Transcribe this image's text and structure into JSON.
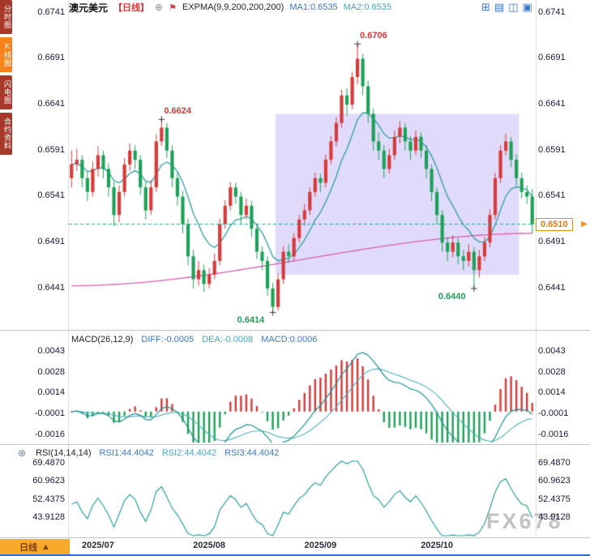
{
  "sidebar": {
    "tabs": [
      {
        "id": "timeshare",
        "label": "分时图",
        "active": false
      },
      {
        "id": "kline",
        "label": "K线图",
        "active": true
      },
      {
        "id": "lightning",
        "label": "闪电图",
        "active": false
      },
      {
        "id": "contract-info",
        "label": "合约资料",
        "active": false
      }
    ]
  },
  "header": {
    "symbol": "澳元美元",
    "period": "【日线】",
    "indicator": "EXPMA(9,9,200,200,200)",
    "ma1": "MA1:0.6535",
    "ma2": "MA2:0.6535",
    "icons": {
      "plus_circle": "⊕",
      "flag": "⚑",
      "price_arrow": "▶",
      "rsi_star": "⊛"
    },
    "toolbar_icons": [
      "⊞",
      "▤",
      "◫",
      "▣"
    ]
  },
  "bottom_tab": {
    "label": "日线",
    "arrow": "▲"
  },
  "watermark": "FX678",
  "colors": {
    "up": "#d63a3a",
    "down": "#1da158",
    "ema": "#2f9d9e",
    "ma200": "#d75fae",
    "region": "rgba(143,125,236,0.28)",
    "dashed_line": "#2f9d9e",
    "marker": "#3a3a3a",
    "macd_diff": "#1f8f90",
    "macd_dea": "#49b0b8",
    "rsi_line": "#2f9d9e"
  },
  "chart_data": [
    {
      "type": "candlestick",
      "title": "澳元美元 日线 (AUD/USD daily)",
      "ylim": [
        0.6395,
        0.6745
      ],
      "yticks": [
        "0.6741",
        "0.6691",
        "0.6641",
        "0.6591",
        "0.6541",
        "0.6491",
        "0.6441"
      ],
      "current_price": 0.651,
      "current_price_label": "0.6510",
      "ema_period": 9,
      "ma200": {
        "start": 0.6443,
        "end": 0.65
      },
      "highlight_region": {
        "from_index": 39,
        "to_index": 84,
        "top_price": 0.663,
        "bottom_price": 0.6455
      },
      "annotations": [
        {
          "index": 17,
          "price": 0.6624,
          "text": "0.6624",
          "type": "high"
        },
        {
          "index": 54,
          "price": 0.6706,
          "text": "0.6706",
          "type": "high"
        },
        {
          "index": 38,
          "price": 0.6414,
          "text": "0.6414",
          "type": "low"
        },
        {
          "index": 76,
          "price": 0.644,
          "text": "0.6440",
          "type": "low"
        }
      ],
      "x_labels": [
        {
          "text": "2025/07",
          "index": 5
        },
        {
          "text": "2025/08",
          "index": 26
        },
        {
          "text": "2025/09",
          "index": 47
        },
        {
          "text": "2025/10",
          "index": 69
        }
      ],
      "candles": [
        [
          0.656,
          0.659,
          0.655,
          0.6575
        ],
        [
          0.6575,
          0.6592,
          0.6568,
          0.658
        ],
        [
          0.658,
          0.6585,
          0.655,
          0.656
        ],
        [
          0.656,
          0.6568,
          0.6535,
          0.6545
        ],
        [
          0.6545,
          0.6578,
          0.654,
          0.657
        ],
        [
          0.657,
          0.6595,
          0.6562,
          0.6585
        ],
        [
          0.6585,
          0.659,
          0.656,
          0.657
        ],
        [
          0.657,
          0.6576,
          0.654,
          0.655
        ],
        [
          0.655,
          0.6556,
          0.6508,
          0.652
        ],
        [
          0.652,
          0.6552,
          0.6512,
          0.6545
        ],
        [
          0.6545,
          0.6582,
          0.654,
          0.6575
        ],
        [
          0.6575,
          0.6598,
          0.6568,
          0.659
        ],
        [
          0.659,
          0.6596,
          0.657,
          0.658
        ],
        [
          0.658,
          0.6585,
          0.6542,
          0.655
        ],
        [
          0.655,
          0.6556,
          0.6515,
          0.6525
        ],
        [
          0.6525,
          0.6558,
          0.652,
          0.655
        ],
        [
          0.655,
          0.6608,
          0.6545,
          0.66
        ],
        [
          0.66,
          0.6624,
          0.6595,
          0.6615
        ],
        [
          0.6615,
          0.662,
          0.6582,
          0.659
        ],
        [
          0.659,
          0.6596,
          0.655,
          0.656
        ],
        [
          0.656,
          0.6566,
          0.653,
          0.654
        ],
        [
          0.654,
          0.6546,
          0.65,
          0.651
        ],
        [
          0.651,
          0.6516,
          0.6465,
          0.6475
        ],
        [
          0.6475,
          0.6482,
          0.644,
          0.645
        ],
        [
          0.645,
          0.647,
          0.6443,
          0.646
        ],
        [
          0.646,
          0.6466,
          0.6436,
          0.6445
        ],
        [
          0.6445,
          0.6462,
          0.644,
          0.6455
        ],
        [
          0.6455,
          0.6478,
          0.645,
          0.647
        ],
        [
          0.647,
          0.6516,
          0.6465,
          0.651
        ],
        [
          0.651,
          0.6536,
          0.6505,
          0.653
        ],
        [
          0.653,
          0.6556,
          0.6525,
          0.655
        ],
        [
          0.655,
          0.6555,
          0.6532,
          0.654
        ],
        [
          0.654,
          0.6545,
          0.651,
          0.652
        ],
        [
          0.652,
          0.6538,
          0.6515,
          0.653
        ],
        [
          0.653,
          0.6535,
          0.6496,
          0.6505
        ],
        [
          0.6505,
          0.651,
          0.6472,
          0.648
        ],
        [
          0.648,
          0.6486,
          0.646,
          0.647
        ],
        [
          0.647,
          0.6475,
          0.6432,
          0.644
        ],
        [
          0.644,
          0.6446,
          0.6414,
          0.642
        ],
        [
          0.642,
          0.6456,
          0.6416,
          0.645
        ],
        [
          0.645,
          0.6486,
          0.6445,
          0.648
        ],
        [
          0.648,
          0.6488,
          0.6468,
          0.6475
        ],
        [
          0.6475,
          0.65,
          0.647,
          0.6495
        ],
        [
          0.6495,
          0.652,
          0.649,
          0.6515
        ],
        [
          0.6515,
          0.6532,
          0.6508,
          0.6525
        ],
        [
          0.6525,
          0.655,
          0.652,
          0.6545
        ],
        [
          0.6545,
          0.6566,
          0.654,
          0.656
        ],
        [
          0.656,
          0.6565,
          0.6545,
          0.6555
        ],
        [
          0.6555,
          0.6586,
          0.655,
          0.658
        ],
        [
          0.658,
          0.6606,
          0.6575,
          0.66
        ],
        [
          0.66,
          0.6626,
          0.6595,
          0.662
        ],
        [
          0.662,
          0.6656,
          0.6615,
          0.665
        ],
        [
          0.665,
          0.6658,
          0.6628,
          0.664
        ],
        [
          0.664,
          0.6676,
          0.6635,
          0.667
        ],
        [
          0.667,
          0.6706,
          0.6662,
          0.669
        ],
        [
          0.669,
          0.6695,
          0.665,
          0.666
        ],
        [
          0.666,
          0.6666,
          0.662,
          0.663
        ],
        [
          0.663,
          0.6636,
          0.659,
          0.66
        ],
        [
          0.66,
          0.661,
          0.658,
          0.659
        ],
        [
          0.659,
          0.6596,
          0.656,
          0.657
        ],
        [
          0.657,
          0.6592,
          0.6565,
          0.6585
        ],
        [
          0.6585,
          0.6612,
          0.658,
          0.6605
        ],
        [
          0.6605,
          0.6622,
          0.6598,
          0.6615
        ],
        [
          0.6615,
          0.662,
          0.659,
          0.66
        ],
        [
          0.66,
          0.6606,
          0.658,
          0.659
        ],
        [
          0.659,
          0.6612,
          0.6585,
          0.6605
        ],
        [
          0.6605,
          0.661,
          0.6582,
          0.659
        ],
        [
          0.659,
          0.6596,
          0.656,
          0.657
        ],
        [
          0.657,
          0.6575,
          0.6535,
          0.6545
        ],
        [
          0.6545,
          0.655,
          0.651,
          0.652
        ],
        [
          0.652,
          0.6525,
          0.648,
          0.649
        ],
        [
          0.649,
          0.6496,
          0.647,
          0.648
        ],
        [
          0.648,
          0.6498,
          0.6474,
          0.649
        ],
        [
          0.649,
          0.6495,
          0.6466,
          0.6475
        ],
        [
          0.6475,
          0.6482,
          0.646,
          0.647
        ],
        [
          0.647,
          0.6488,
          0.6464,
          0.648
        ],
        [
          0.648,
          0.6485,
          0.644,
          0.646
        ],
        [
          0.646,
          0.6482,
          0.6452,
          0.6475
        ],
        [
          0.6475,
          0.6496,
          0.647,
          0.649
        ],
        [
          0.649,
          0.6526,
          0.6485,
          0.652
        ],
        [
          0.652,
          0.6566,
          0.6515,
          0.656
        ],
        [
          0.656,
          0.6596,
          0.6555,
          0.659
        ],
        [
          0.659,
          0.6608,
          0.6585,
          0.66
        ],
        [
          0.66,
          0.6605,
          0.6572,
          0.658
        ],
        [
          0.658,
          0.6586,
          0.6552,
          0.656
        ],
        [
          0.656,
          0.6566,
          0.6538,
          0.6545
        ],
        [
          0.6545,
          0.6552,
          0.6532,
          0.654
        ],
        [
          0.654,
          0.6548,
          0.65,
          0.651
        ]
      ]
    },
    {
      "type": "macd",
      "title": "MACD(26,12,9)",
      "diff_label": "DIFF:-0.0005",
      "dea_label": "DEA:-0.0008",
      "macd_label": "MACD:0.0006",
      "params": [
        26,
        12,
        9
      ],
      "ylim": [
        -0.0022,
        0.0046
      ],
      "yticks": [
        "0.0043",
        "0.0028",
        "0.0014",
        "-0.0001",
        "-0.0016"
      ]
    },
    {
      "type": "rsi",
      "title": "RSI(14,14,14)",
      "rsi1_label": "RSI1:44.4042",
      "rsi2_label": "RSI2:44.4042",
      "rsi3_label": "RSI3:44.4042",
      "params": [
        14,
        14,
        14
      ],
      "ylim": [
        35,
        70.5
      ],
      "yticks": [
        "69.4870",
        "60.9623",
        "52.4375",
        "43.9128"
      ]
    }
  ]
}
